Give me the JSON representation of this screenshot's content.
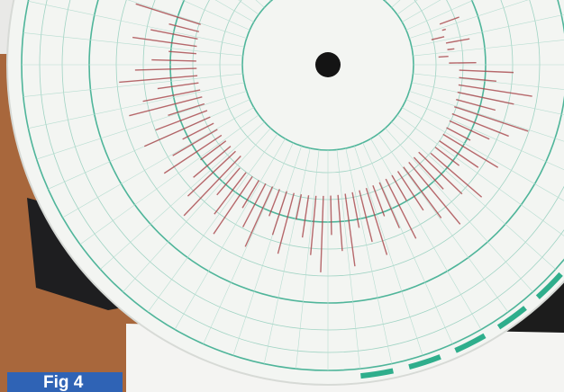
{
  "caption": "Fig 4"
}
